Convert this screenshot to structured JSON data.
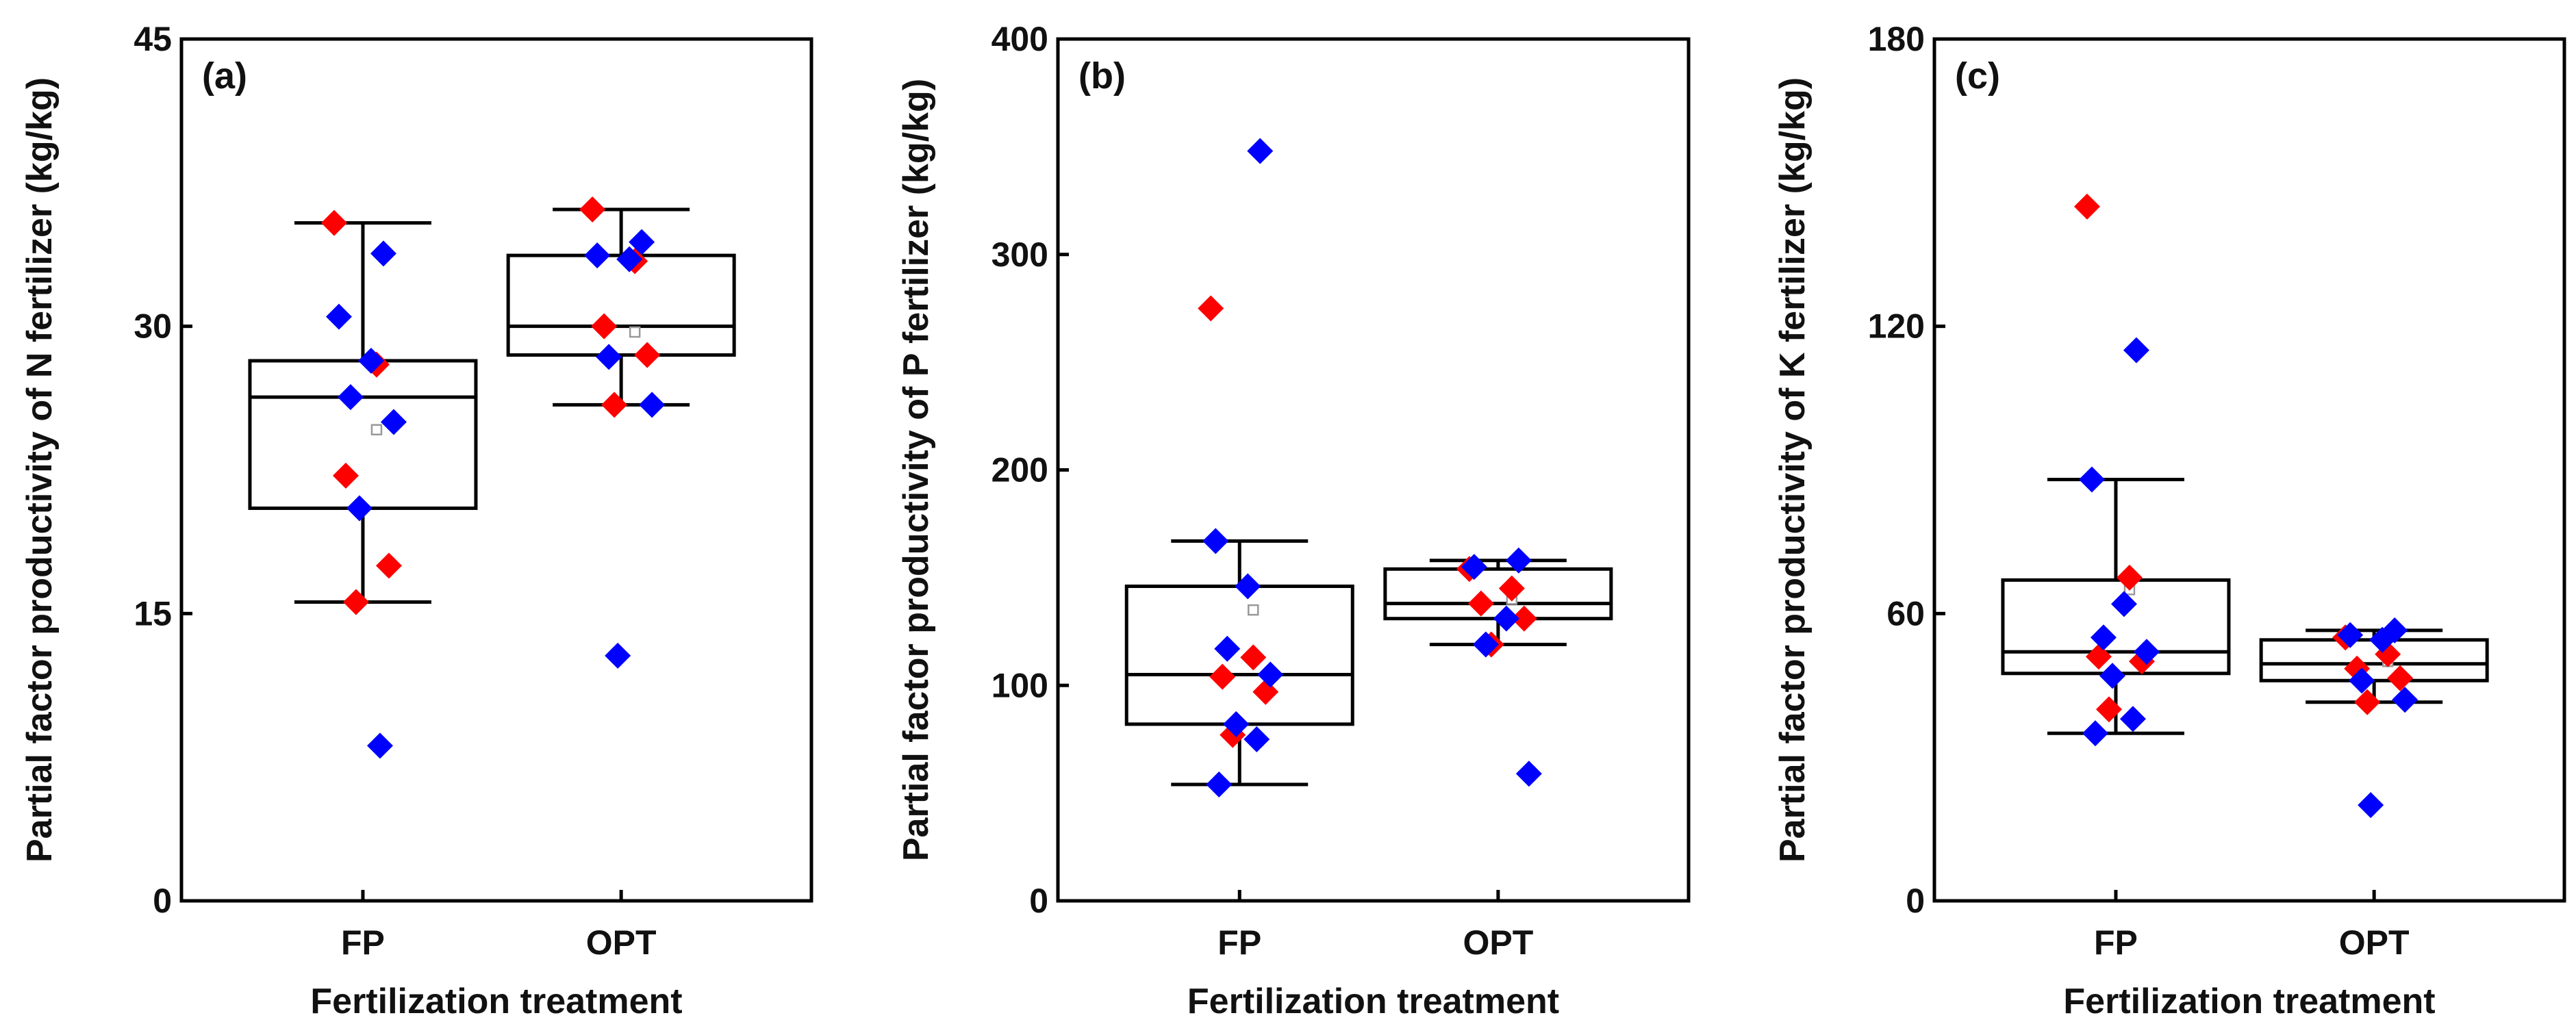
{
  "colors": {
    "series_a": "#ff0000",
    "series_b": "#0000ff",
    "axis": "#000000",
    "mean_marker": "#999999"
  },
  "chart_data": [
    {
      "type": "box",
      "panel_label": "(a)",
      "title": "",
      "xlabel": "Fertilization treatment",
      "ylabel": "Partial factor productivity of N fertilizer (kg/kg)",
      "ylim": [
        0,
        45
      ],
      "yticks": [
        0,
        15,
        30,
        45
      ],
      "categories": [
        "FP",
        "OPT"
      ],
      "boxes": [
        {
          "category": "FP",
          "q1": 20.5,
          "median": 26.3,
          "q3": 28.2,
          "whisker_low": 15.6,
          "whisker_high": 35.4,
          "mean": 24.6
        },
        {
          "category": "OPT",
          "q1": 28.5,
          "median": 30.0,
          "q3": 33.7,
          "whisker_low": 25.9,
          "whisker_high": 36.1,
          "mean": 29.7
        }
      ],
      "points": [
        {
          "category": "FP",
          "value": 35.4,
          "series": "red"
        },
        {
          "category": "FP",
          "value": 28.0,
          "series": "red"
        },
        {
          "category": "FP",
          "value": 22.2,
          "series": "red"
        },
        {
          "category": "FP",
          "value": 17.5,
          "series": "red"
        },
        {
          "category": "FP",
          "value": 15.6,
          "series": "red"
        },
        {
          "category": "FP",
          "value": 33.8,
          "series": "blue"
        },
        {
          "category": "FP",
          "value": 30.5,
          "series": "blue"
        },
        {
          "category": "FP",
          "value": 28.2,
          "series": "blue"
        },
        {
          "category": "FP",
          "value": 26.3,
          "series": "blue"
        },
        {
          "category": "FP",
          "value": 25.0,
          "series": "blue"
        },
        {
          "category": "FP",
          "value": 20.5,
          "series": "blue"
        },
        {
          "category": "FP",
          "value": 8.1,
          "series": "blue"
        },
        {
          "category": "OPT",
          "value": 36.1,
          "series": "red"
        },
        {
          "category": "OPT",
          "value": 33.4,
          "series": "red"
        },
        {
          "category": "OPT",
          "value": 30.0,
          "series": "red"
        },
        {
          "category": "OPT",
          "value": 28.5,
          "series": "red"
        },
        {
          "category": "OPT",
          "value": 25.9,
          "series": "red"
        },
        {
          "category": "OPT",
          "value": 34.4,
          "series": "blue"
        },
        {
          "category": "OPT",
          "value": 33.7,
          "series": "blue"
        },
        {
          "category": "OPT",
          "value": 33.5,
          "series": "blue"
        },
        {
          "category": "OPT",
          "value": 28.4,
          "series": "blue"
        },
        {
          "category": "OPT",
          "value": 25.9,
          "series": "blue"
        },
        {
          "category": "OPT",
          "value": 12.8,
          "series": "blue"
        }
      ]
    },
    {
      "type": "box",
      "panel_label": "(b)",
      "title": "",
      "xlabel": "Fertilization treatment",
      "ylabel": "Partial factor productivity of P fertilizer (kg/kg)",
      "ylim": [
        0,
        400
      ],
      "yticks": [
        0,
        100,
        200,
        300,
        400
      ],
      "categories": [
        "FP",
        "OPT"
      ],
      "boxes": [
        {
          "category": "FP",
          "q1": 82,
          "median": 105,
          "q3": 146,
          "whisker_low": 54,
          "whisker_high": 167,
          "mean": 135
        },
        {
          "category": "OPT",
          "q1": 131,
          "median": 138,
          "q3": 154,
          "whisker_low": 119,
          "whisker_high": 158,
          "mean": 140
        }
      ],
      "points": [
        {
          "category": "FP",
          "value": 275,
          "series": "red"
        },
        {
          "category": "FP",
          "value": 113,
          "series": "red"
        },
        {
          "category": "FP",
          "value": 104,
          "series": "red"
        },
        {
          "category": "FP",
          "value": 97,
          "series": "red"
        },
        {
          "category": "FP",
          "value": 77,
          "series": "red"
        },
        {
          "category": "FP",
          "value": 348,
          "series": "blue"
        },
        {
          "category": "FP",
          "value": 167,
          "series": "blue"
        },
        {
          "category": "FP",
          "value": 146,
          "series": "blue"
        },
        {
          "category": "FP",
          "value": 117,
          "series": "blue"
        },
        {
          "category": "FP",
          "value": 105,
          "series": "blue"
        },
        {
          "category": "FP",
          "value": 82,
          "series": "blue"
        },
        {
          "category": "FP",
          "value": 75,
          "series": "blue"
        },
        {
          "category": "FP",
          "value": 54,
          "series": "blue"
        },
        {
          "category": "OPT",
          "value": 154,
          "series": "red"
        },
        {
          "category": "OPT",
          "value": 145,
          "series": "red"
        },
        {
          "category": "OPT",
          "value": 138,
          "series": "red"
        },
        {
          "category": "OPT",
          "value": 131,
          "series": "red"
        },
        {
          "category": "OPT",
          "value": 119,
          "series": "red"
        },
        {
          "category": "OPT",
          "value": 158,
          "series": "blue"
        },
        {
          "category": "OPT",
          "value": 155,
          "series": "blue"
        },
        {
          "category": "OPT",
          "value": 131,
          "series": "blue"
        },
        {
          "category": "OPT",
          "value": 119,
          "series": "blue"
        },
        {
          "category": "OPT",
          "value": 59,
          "series": "blue"
        }
      ]
    },
    {
      "type": "box",
      "panel_label": "(c)",
      "title": "",
      "xlabel": "Fertilization treatment",
      "ylabel": "Partial factor productivity of K fertilizer (kg/kg)",
      "ylim": [
        0,
        180
      ],
      "yticks": [
        0,
        60,
        120,
        180
      ],
      "categories": [
        "FP",
        "OPT"
      ],
      "boxes": [
        {
          "category": "FP",
          "q1": 47.5,
          "median": 52,
          "q3": 67,
          "whisker_low": 35,
          "whisker_high": 88,
          "mean": 65
        },
        {
          "category": "OPT",
          "q1": 46,
          "median": 49.5,
          "q3": 54.5,
          "whisker_low": 41.5,
          "whisker_high": 56.5,
          "mean": 50
        }
      ],
      "points": [
        {
          "category": "FP",
          "value": 145,
          "series": "red"
        },
        {
          "category": "FP",
          "value": 67.5,
          "series": "red"
        },
        {
          "category": "FP",
          "value": 51,
          "series": "red"
        },
        {
          "category": "FP",
          "value": 50,
          "series": "red"
        },
        {
          "category": "FP",
          "value": 40,
          "series": "red"
        },
        {
          "category": "FP",
          "value": 115,
          "series": "blue"
        },
        {
          "category": "FP",
          "value": 88,
          "series": "blue"
        },
        {
          "category": "FP",
          "value": 62,
          "series": "blue"
        },
        {
          "category": "FP",
          "value": 55,
          "series": "blue"
        },
        {
          "category": "FP",
          "value": 52,
          "series": "blue"
        },
        {
          "category": "FP",
          "value": 47,
          "series": "blue"
        },
        {
          "category": "FP",
          "value": 38,
          "series": "blue"
        },
        {
          "category": "FP",
          "value": 35,
          "series": "blue"
        },
        {
          "category": "OPT",
          "value": 55,
          "series": "red"
        },
        {
          "category": "OPT",
          "value": 51.5,
          "series": "red"
        },
        {
          "category": "OPT",
          "value": 48.5,
          "series": "red"
        },
        {
          "category": "OPT",
          "value": 46.5,
          "series": "red"
        },
        {
          "category": "OPT",
          "value": 41.5,
          "series": "red"
        },
        {
          "category": "OPT",
          "value": 56.5,
          "series": "blue"
        },
        {
          "category": "OPT",
          "value": 55.5,
          "series": "blue"
        },
        {
          "category": "OPT",
          "value": 54.5,
          "series": "blue"
        },
        {
          "category": "OPT",
          "value": 46,
          "series": "blue"
        },
        {
          "category": "OPT",
          "value": 42,
          "series": "blue"
        },
        {
          "category": "OPT",
          "value": 20,
          "series": "blue"
        }
      ]
    }
  ]
}
